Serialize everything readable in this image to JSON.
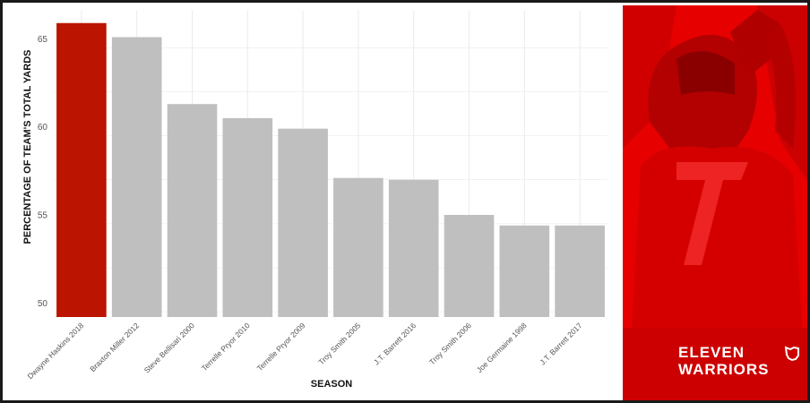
{
  "chart_data": {
    "type": "bar",
    "title": "",
    "xlabel": "SEASON",
    "ylabel": "PERCENTAGE OF TEAM'S TOTAL YARDS",
    "categories": [
      "Dwayne Haskins 2018",
      "Braxton Miller 2012",
      "Steve Bellisari 2000",
      "Terrelle Pryor 2010",
      "Terrelle Pryor 2009",
      "Troy Smith 2005",
      "J.T. Barrett 2016",
      "Troy Smith 2006",
      "Joe Germaine 1998",
      "J.T. Barrett 2017"
    ],
    "values": [
      65.9,
      65.1,
      61.3,
      60.5,
      59.9,
      57.1,
      57.0,
      55.0,
      54.4,
      54.4
    ],
    "ylim": [
      49.2,
      66.6
    ],
    "yticks": [
      50,
      55,
      60,
      65
    ],
    "grid": true,
    "highlight_index": 0,
    "colors": {
      "highlight": "#bb1400",
      "default": "#bfbfbf",
      "grid": "#ebebeb"
    }
  },
  "brand": {
    "line1": "ELEVEN",
    "line2": "WARRIORS",
    "panel_color": "#e60000",
    "icon": "ohio-state-outline-icon"
  }
}
